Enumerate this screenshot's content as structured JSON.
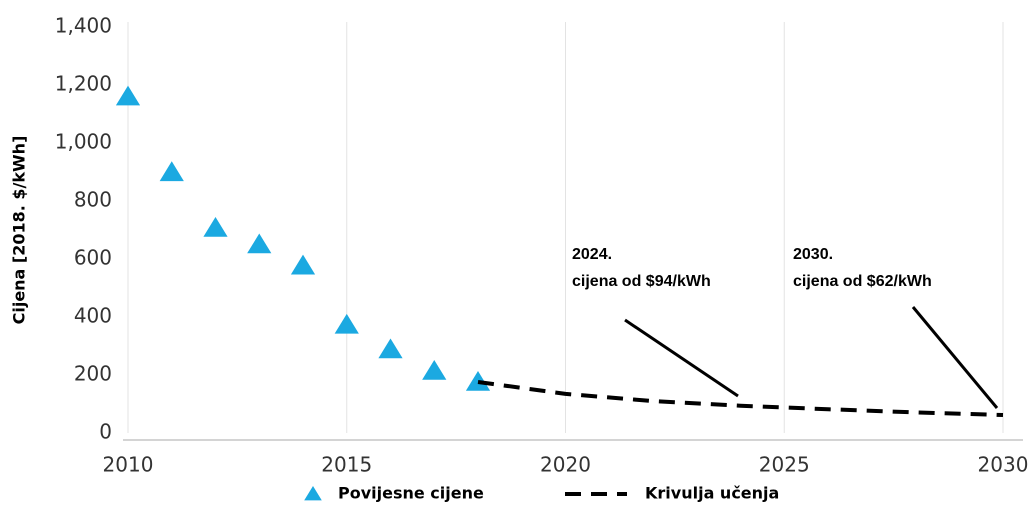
{
  "chart_data": {
    "type": "line",
    "ylabel": "Cijena [2018. $/kWh]",
    "xlim": [
      2010,
      2030
    ],
    "xticks": [
      2010,
      2015,
      2020,
      2025,
      2030
    ],
    "ylim": [
      0,
      1400
    ],
    "yticks": [
      0,
      200,
      400,
      600,
      800,
      {
        "value": 1000,
        "label": "1,000"
      },
      {
        "value": 1200,
        "label": "1,200"
      },
      {
        "value": 1400,
        "label": "1,400"
      }
    ],
    "grid": "x",
    "legend": "bottom",
    "series": [
      {
        "name": "Povijesne cijene",
        "type": "scatter",
        "marker": "triangle",
        "color": "#1ba9e1",
        "x": [
          2010,
          2011,
          2012,
          2013,
          2014,
          2015,
          2016,
          2017,
          2018
        ],
        "values": [
          1160,
          899,
          707,
          650,
          577,
          373,
          288,
          214,
          176
        ]
      },
      {
        "name": "Krivulja učenja",
        "type": "line",
        "dashed": true,
        "color": "#000000",
        "x": [
          2018,
          2020,
          2022,
          2024,
          2026,
          2028,
          2030
        ],
        "values": [
          176,
          135,
          110,
          94,
          82,
          71,
          62
        ]
      }
    ],
    "annotations": [
      {
        "lines": [
          "2024.",
          "cijena od $94/kWh"
        ]
      },
      {
        "lines": [
          "2030.",
          "cijena od $62/kWh"
        ]
      }
    ]
  }
}
